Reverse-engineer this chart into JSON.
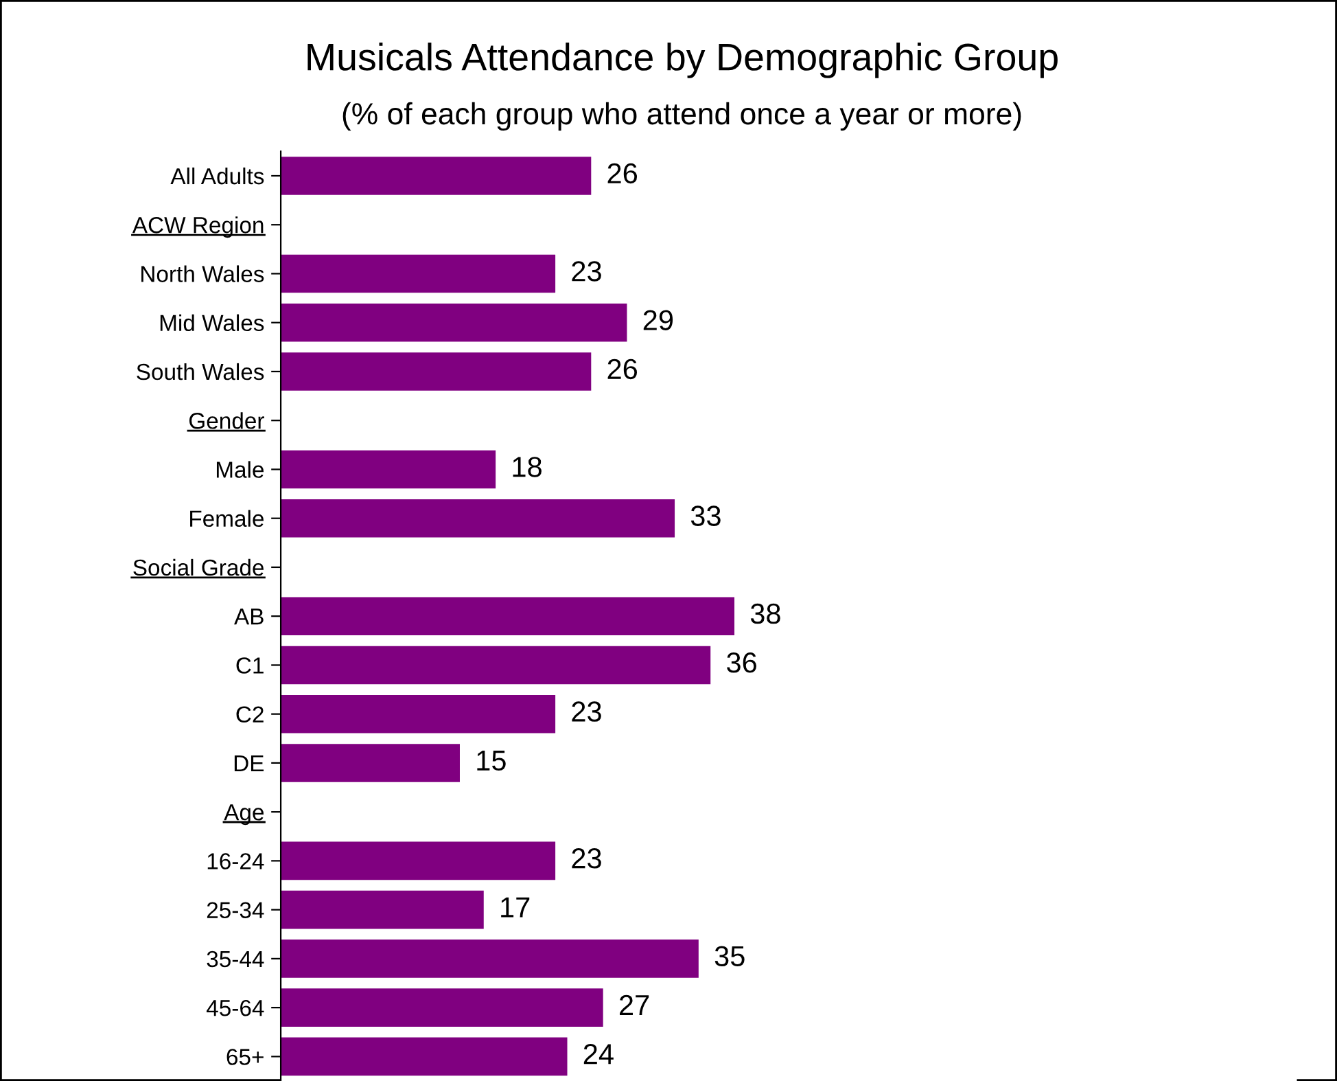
{
  "chart_data": {
    "type": "bar",
    "orientation": "horizontal",
    "title": "Musicals Attendance by Demographic Group",
    "subtitle": "(% of each group who attend once a year or more)",
    "categories": [
      "All Adults",
      "ACW Region",
      "North Wales",
      "Mid Wales",
      "South Wales",
      "Gender",
      "Male",
      "Female",
      "Social Grade",
      "AB",
      "C1",
      "C2",
      "DE",
      "Age",
      "16-24",
      "25-34",
      "35-44",
      "45-64",
      "65+"
    ],
    "values": [
      26,
      null,
      23,
      29,
      26,
      null,
      18,
      33,
      null,
      38,
      36,
      23,
      15,
      null,
      23,
      17,
      35,
      27,
      24
    ],
    "color": "#800080",
    "data_labels": true,
    "tick_labels": "y",
    "grid": false,
    "legend": false
  }
}
